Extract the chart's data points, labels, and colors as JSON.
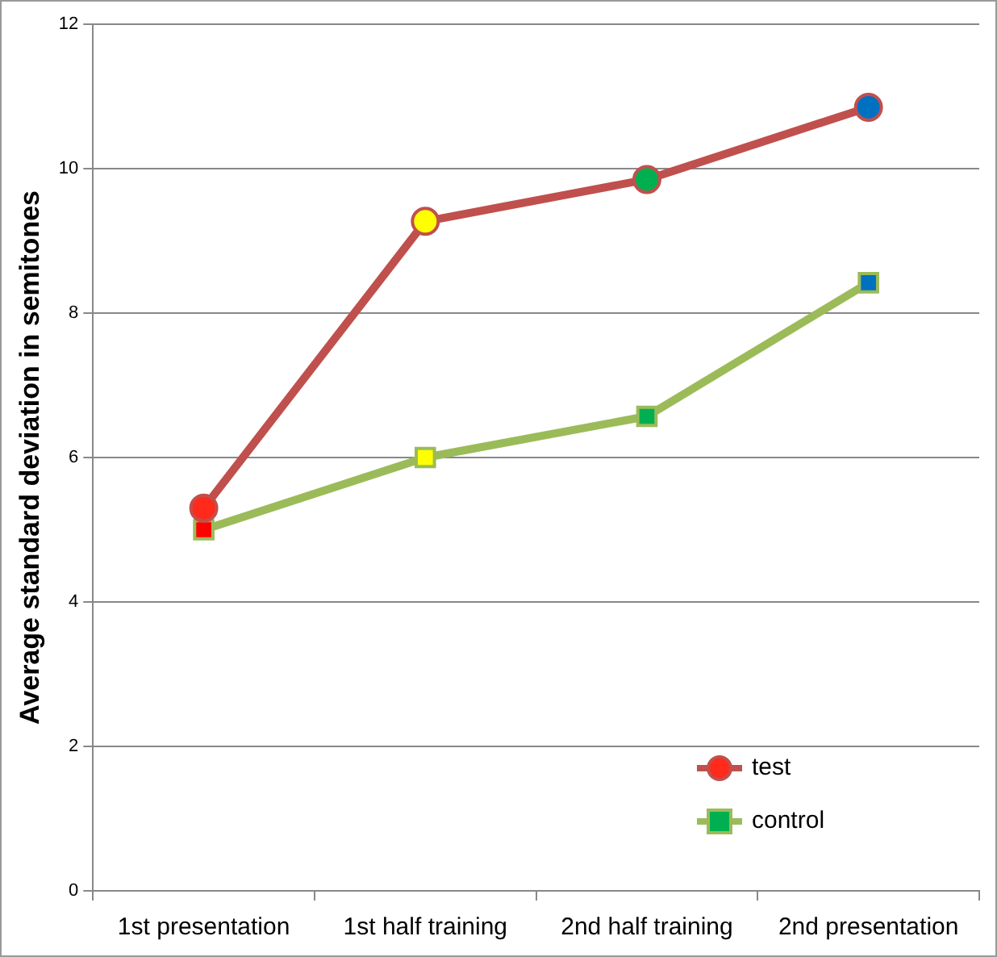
{
  "chart_data": {
    "type": "line",
    "ylabel": "Average standard deviation in semitones",
    "categories": [
      "1st presentation",
      "1st half training",
      "2nd half training",
      "2nd presentation"
    ],
    "series": [
      {
        "name": "test",
        "color": "#c0504d",
        "marker": "circle",
        "colors": [
          "#ff2a1a",
          "#ffff00",
          "#00b050",
          "#0070c0"
        ],
        "values": [
          5.3,
          9.27,
          9.85,
          10.85
        ]
      },
      {
        "name": "control",
        "color": "#9bbb59",
        "marker": "square",
        "colors": [
          "#ff0000",
          "#ffff00",
          "#00b050",
          "#0070c0"
        ],
        "values": [
          5.0,
          6.0,
          6.57,
          8.42
        ]
      }
    ],
    "ylim": [
      0,
      12
    ],
    "yticks": [
      0,
      2,
      4,
      6,
      8,
      10,
      12
    ],
    "grid": "y",
    "legend": "bottom right"
  }
}
